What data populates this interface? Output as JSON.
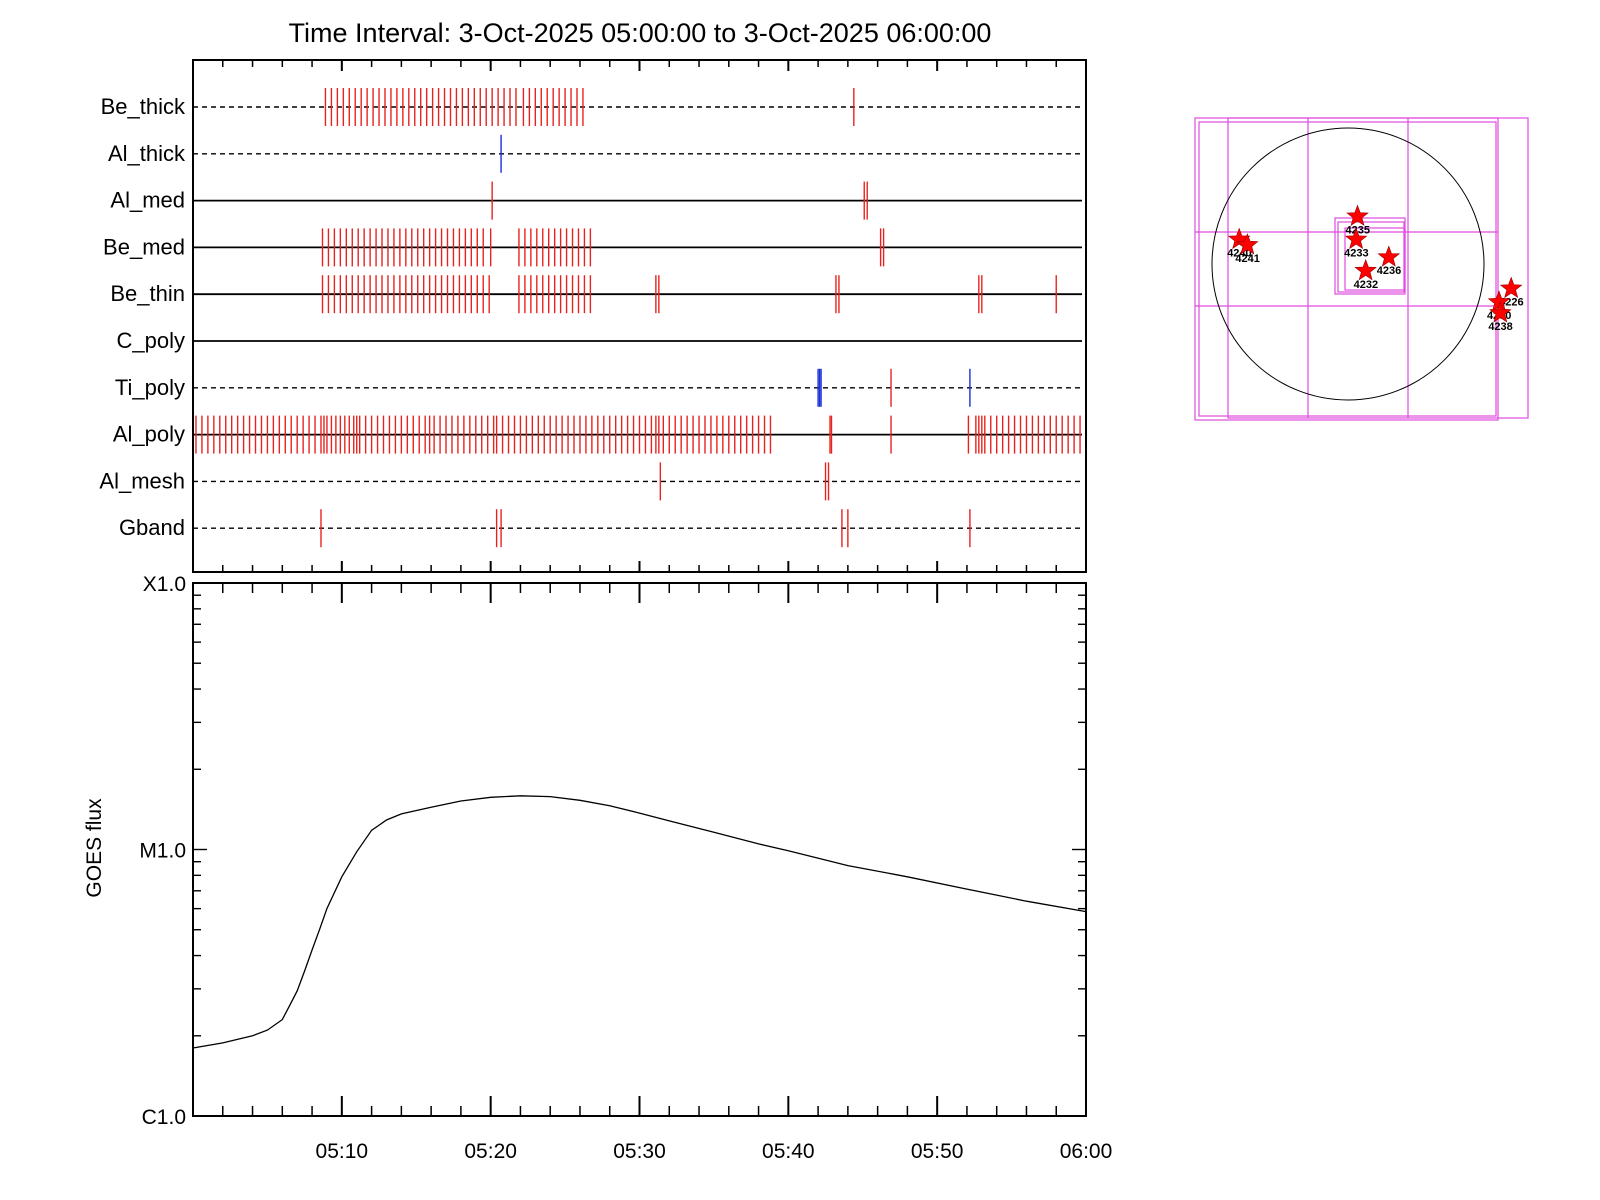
{
  "title": "Time Interval:  3-Oct-2025 05:00:00 to  3-Oct-2025 06:00:00",
  "chart_data": [
    {
      "type": "timeline",
      "x_range_minutes": [
        0,
        60
      ],
      "rows": [
        {
          "name": "Be_thick",
          "line": "dashed",
          "events": [
            {
              "color": "red",
              "times": [
                8.9,
                9.3,
                9.7,
                10.1,
                10.5,
                10.9,
                11.3,
                11.7,
                12.1,
                12.5,
                12.9,
                13.3,
                13.7,
                14.1,
                14.5,
                14.9,
                15.3,
                15.7,
                16.1,
                16.5,
                16.9,
                17.3,
                17.7,
                18.1,
                18.5,
                18.9,
                19.3,
                19.7,
                20.1,
                20.5,
                20.9,
                21.3,
                21.7,
                22.2,
                22.6,
                23.0,
                23.4,
                23.8,
                24.2,
                24.6,
                25.0,
                25.4,
                25.8,
                26.2,
                44.4
              ]
            }
          ]
        },
        {
          "name": "Al_thick",
          "line": "dashed",
          "events": [
            {
              "color": "blue",
              "times": [
                20.7
              ]
            }
          ]
        },
        {
          "name": "Al_med",
          "line": "solid",
          "events": [
            {
              "color": "red",
              "times": [
                20.1,
                45.1,
                45.3
              ]
            }
          ]
        },
        {
          "name": "Be_med",
          "line": "solid",
          "events": [
            {
              "color": "red",
              "times": [
                8.7,
                9.1,
                9.5,
                9.9,
                10.3,
                10.7,
                11.1,
                11.5,
                11.9,
                12.3,
                12.7,
                13.1,
                13.5,
                13.9,
                14.3,
                14.7,
                15.1,
                15.5,
                15.9,
                16.3,
                16.7,
                17.1,
                17.5,
                17.9,
                18.3,
                18.7,
                19.1,
                19.5,
                20.0,
                21.9,
                22.3,
                22.7,
                23.1,
                23.5,
                23.9,
                24.3,
                24.7,
                25.1,
                25.5,
                25.9,
                26.3,
                26.7,
                46.2,
                46.4
              ]
            }
          ]
        },
        {
          "name": "Be_thin",
          "line": "solid",
          "events": [
            {
              "color": "red",
              "times": [
                8.7,
                9.1,
                9.5,
                9.9,
                10.3,
                10.7,
                11.1,
                11.5,
                11.9,
                12.3,
                12.7,
                13.1,
                13.5,
                13.9,
                14.3,
                14.7,
                15.1,
                15.5,
                15.9,
                16.3,
                16.7,
                17.1,
                17.5,
                17.9,
                18.3,
                18.7,
                19.1,
                19.5,
                19.9,
                21.9,
                22.3,
                22.7,
                23.1,
                23.5,
                23.9,
                24.3,
                24.7,
                25.1,
                25.5,
                25.9,
                26.3,
                26.7,
                31.1,
                31.3,
                43.2,
                43.4,
                52.8,
                53.0,
                58.0
              ]
            }
          ]
        },
        {
          "name": "C_poly",
          "line": "solid",
          "events": []
        },
        {
          "name": "Ti_poly",
          "line": "dashed",
          "events": [
            {
              "color": "blue",
              "times": [
                42.0,
                42.1,
                42.2,
                52.2
              ]
            },
            {
              "color": "red",
              "times": [
                46.9
              ]
            }
          ]
        },
        {
          "name": "Al_poly",
          "line": "solid",
          "events": [
            {
              "color": "red",
              "times": [
                0.2,
                0.6,
                1.0,
                1.4,
                1.8,
                2.2,
                2.6,
                3.0,
                3.4,
                3.8,
                4.2,
                4.6,
                5.0,
                5.4,
                5.8,
                6.2,
                6.6,
                7.0,
                7.4,
                7.8,
                8.2,
                8.6,
                8.8,
                9.0,
                9.3,
                9.6,
                9.9,
                10.2,
                10.5,
                10.8,
                11.0,
                11.2,
                11.6,
                12.0,
                12.4,
                12.8,
                13.2,
                13.6,
                14.0,
                14.4,
                14.8,
                15.2,
                15.6,
                15.9,
                16.2,
                16.6,
                17.0,
                17.4,
                17.8,
                18.2,
                18.6,
                19.0,
                19.4,
                19.8,
                20.2,
                20.4,
                20.8,
                21.2,
                21.6,
                22.0,
                22.4,
                22.8,
                23.2,
                23.6,
                24.0,
                24.4,
                24.8,
                25.2,
                25.6,
                26.0,
                26.4,
                26.8,
                27.2,
                27.6,
                28.0,
                28.4,
                28.8,
                29.2,
                29.6,
                30.0,
                30.4,
                30.8,
                31.1,
                31.3,
                31.6,
                32.0,
                32.4,
                32.8,
                33.2,
                33.6,
                34.0,
                34.4,
                34.8,
                35.2,
                35.6,
                36.0,
                36.4,
                36.8,
                37.2,
                37.6,
                38.0,
                38.4,
                38.8,
                42.8,
                42.9,
                46.9,
                52.1,
                52.6,
                52.8,
                53.0,
                53.2,
                53.6,
                54.0,
                54.4,
                54.8,
                55.2,
                55.6,
                56.0,
                56.4,
                56.8,
                57.2,
                57.6,
                58.0,
                58.4,
                58.8,
                59.2,
                59.6
              ]
            }
          ]
        },
        {
          "name": "Al_mesh",
          "line": "dashed",
          "events": [
            {
              "color": "red",
              "times": [
                31.4,
                42.5,
                42.7
              ]
            }
          ]
        },
        {
          "name": "Gband",
          "line": "dashed",
          "events": [
            {
              "color": "red",
              "times": [
                8.6,
                20.4,
                20.7,
                43.6,
                44.0,
                52.2
              ]
            }
          ]
        }
      ]
    },
    {
      "type": "line",
      "ylabel": "GOES flux",
      "y_scale": "log",
      "ylim": [
        1e-06,
        0.0001
      ],
      "yticks": [
        {
          "value": 1e-06,
          "label": "C1.0"
        },
        {
          "value": 1e-05,
          "label": "M1.0"
        },
        {
          "value": 0.0001,
          "label": "X1.0"
        }
      ],
      "xticks": [
        {
          "minutes": 10,
          "label": "05:10"
        },
        {
          "minutes": 20,
          "label": "05:20"
        },
        {
          "minutes": 30,
          "label": "05:30"
        },
        {
          "minutes": 40,
          "label": "05:40"
        },
        {
          "minutes": 50,
          "label": "05:50"
        },
        {
          "minutes": 60,
          "label": "06:00"
        }
      ],
      "x_minutes": [
        0,
        2,
        4,
        5,
        6,
        6.5,
        7,
        7.5,
        8,
        8.5,
        9,
        10,
        11,
        12,
        13,
        14,
        16,
        18,
        20,
        22,
        24,
        26,
        28,
        30,
        32,
        35,
        38,
        40,
        44,
        48,
        52,
        56,
        60
      ],
      "values": [
        1.8e-06,
        1.88e-06,
        2e-06,
        2.1e-06,
        2.3e-06,
        2.6e-06,
        2.95e-06,
        3.5e-06,
        4.2e-06,
        5e-06,
        6e-06,
        7.9e-06,
        9.8e-06,
        1.18e-05,
        1.29e-05,
        1.36e-05,
        1.44e-05,
        1.52e-05,
        1.57e-05,
        1.59e-05,
        1.58e-05,
        1.53e-05,
        1.46e-05,
        1.37e-05,
        1.28e-05,
        1.16e-05,
        1.05e-05,
        9.9e-06,
        8.7e-06,
        7.9e-06,
        7.1e-06,
        6.4e-06,
        5.85e-06
      ]
    },
    {
      "type": "scatter",
      "panel": "solar disk locator",
      "points": [
        {
          "label": "4240",
          "x": -0.8,
          "y": 0.18
        },
        {
          "label": "4241",
          "x": -0.74,
          "y": 0.14
        },
        {
          "label": "4235",
          "x": 0.07,
          "y": 0.35
        },
        {
          "label": "4233",
          "x": 0.06,
          "y": 0.18
        },
        {
          "label": "4236",
          "x": 0.3,
          "y": 0.05
        },
        {
          "label": "4232",
          "x": 0.13,
          "y": -0.05
        },
        {
          "label": "4226",
          "x": 1.2,
          "y": -0.18
        },
        {
          "label": "4230",
          "x": 1.11,
          "y": -0.28
        },
        {
          "label": "4238",
          "x": 1.12,
          "y": -0.36
        }
      ]
    }
  ]
}
